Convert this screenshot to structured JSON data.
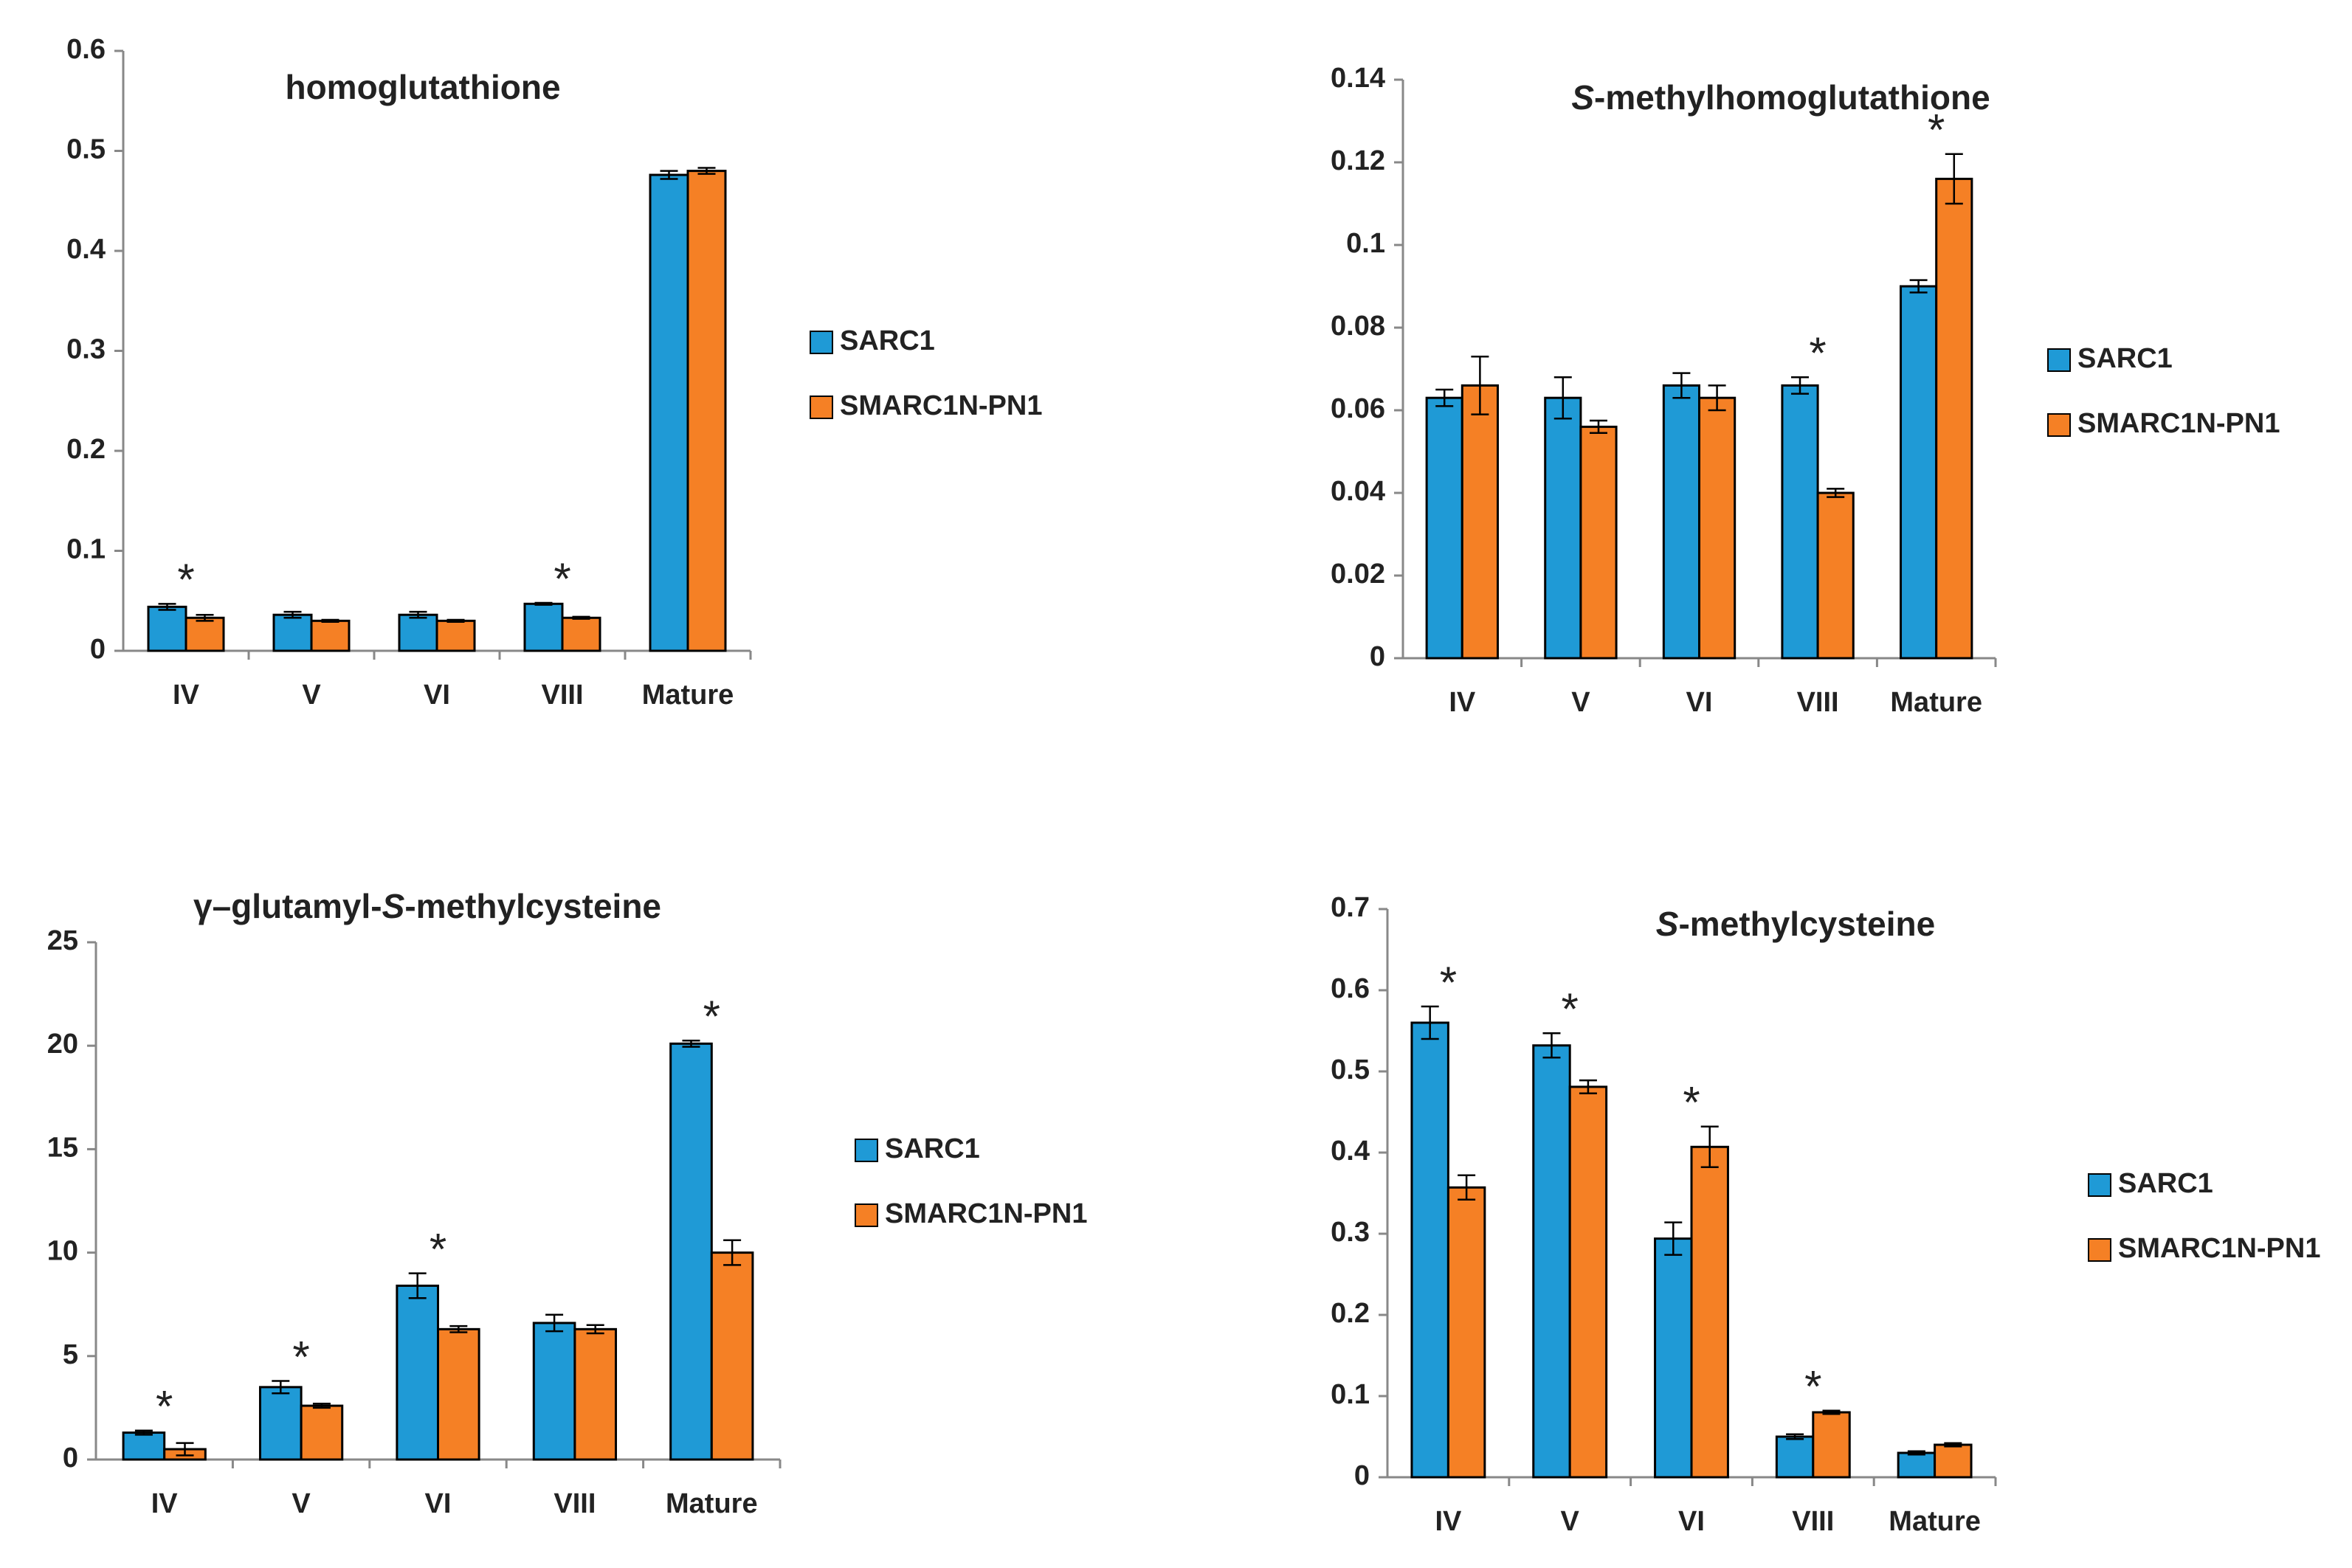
{
  "chart_data": [
    {
      "type": "bar",
      "title": [
        {
          "text": "homoglutathione",
          "italic": false
        }
      ],
      "categories": [
        "IV",
        "V",
        "VI",
        "VIII",
        "Mature"
      ],
      "series": [
        {
          "name": "SARC1",
          "color": "#1f9ad6",
          "values": [
            0.044,
            0.036,
            0.036,
            0.047,
            0.476
          ],
          "errors": [
            0.003,
            0.003,
            0.003,
            0.001,
            0.004
          ]
        },
        {
          "name": "SMARC1N-PN1",
          "color": "#f58025",
          "values": [
            0.033,
            0.03,
            0.03,
            0.033,
            0.48
          ],
          "errors": [
            0.003,
            0.001,
            0.001,
            0.001,
            0.003
          ]
        }
      ],
      "ylim": [
        0,
        0.6
      ],
      "yticks": [
        0,
        0.1,
        0.2,
        0.3,
        0.4,
        0.5,
        0.6
      ],
      "annotations": [
        {
          "text": "*",
          "category": "IV"
        },
        {
          "text": "*",
          "category": "VIII"
        }
      ]
    },
    {
      "type": "bar",
      "title": [
        {
          "text": "S",
          "italic": true
        },
        {
          "text": "-methylhomoglutathione",
          "italic": false
        }
      ],
      "categories": [
        "IV",
        "V",
        "VI",
        "VIII",
        "Mature"
      ],
      "series": [
        {
          "name": "SARC1",
          "color": "#1f9ad6",
          "values": [
            0.063,
            0.063,
            0.066,
            0.066,
            0.09
          ],
          "errors": [
            0.002,
            0.005,
            0.003,
            0.002,
            0.0015
          ]
        },
        {
          "name": "SMARC1N-PN1",
          "color": "#f58025",
          "values": [
            0.066,
            0.056,
            0.063,
            0.04,
            0.116
          ],
          "errors": [
            0.007,
            0.0015,
            0.003,
            0.001,
            0.006
          ]
        }
      ],
      "ylim": [
        0,
        0.14
      ],
      "yticks": [
        0,
        0.02,
        0.04,
        0.06,
        0.08,
        0.1,
        0.12,
        0.14
      ],
      "annotations": [
        {
          "text": "*",
          "category": "VIII"
        },
        {
          "text": "*",
          "category": "Mature"
        }
      ]
    },
    {
      "type": "bar",
      "title": [
        {
          "text": "γ–glutamyl-",
          "italic": false
        },
        {
          "text": "S",
          "italic": true
        },
        {
          "text": "-methylcysteine",
          "italic": false
        }
      ],
      "categories": [
        "IV",
        "V",
        "VI",
        "VIII",
        "Mature"
      ],
      "series": [
        {
          "name": "SARC1",
          "color": "#1f9ad6",
          "values": [
            1.3,
            3.5,
            8.4,
            6.6,
            20.1
          ],
          "errors": [
            0.1,
            0.3,
            0.6,
            0.4,
            0.15
          ]
        },
        {
          "name": "SMARC1N-PN1",
          "color": "#f58025",
          "values": [
            0.5,
            2.6,
            6.3,
            6.3,
            10.0
          ],
          "errors": [
            0.3,
            0.1,
            0.15,
            0.2,
            0.6
          ]
        }
      ],
      "ylim": [
        0,
        25
      ],
      "yticks": [
        0,
        5,
        10,
        15,
        20,
        25
      ],
      "annotations": [
        {
          "text": "*",
          "category": "IV"
        },
        {
          "text": "*",
          "category": "V"
        },
        {
          "text": "*",
          "category": "VI"
        },
        {
          "text": "*",
          "category": "Mature"
        }
      ]
    },
    {
      "type": "bar",
      "title": [
        {
          "text": "S",
          "italic": true
        },
        {
          "text": "-methylcysteine",
          "italic": false
        }
      ],
      "categories": [
        "IV",
        "V",
        "VI",
        "VIII",
        "Mature"
      ],
      "series": [
        {
          "name": "SARC1",
          "color": "#1f9ad6",
          "values": [
            0.56,
            0.532,
            0.294,
            0.05,
            0.03
          ],
          "errors": [
            0.02,
            0.015,
            0.02,
            0.003,
            0.002
          ]
        },
        {
          "name": "SMARC1N-PN1",
          "color": "#f58025",
          "values": [
            0.357,
            0.481,
            0.407,
            0.08,
            0.04
          ],
          "errors": [
            0.015,
            0.008,
            0.025,
            0.002,
            0.002
          ]
        }
      ],
      "ylim": [
        0,
        0.7
      ],
      "yticks": [
        0,
        0.1,
        0.2,
        0.3,
        0.4,
        0.5,
        0.6,
        0.7
      ],
      "annotations": [
        {
          "text": "*",
          "category": "IV"
        },
        {
          "text": "*",
          "category": "V"
        },
        {
          "text": "*",
          "category": "VI"
        },
        {
          "text": "*",
          "category": "VIII"
        }
      ]
    }
  ]
}
